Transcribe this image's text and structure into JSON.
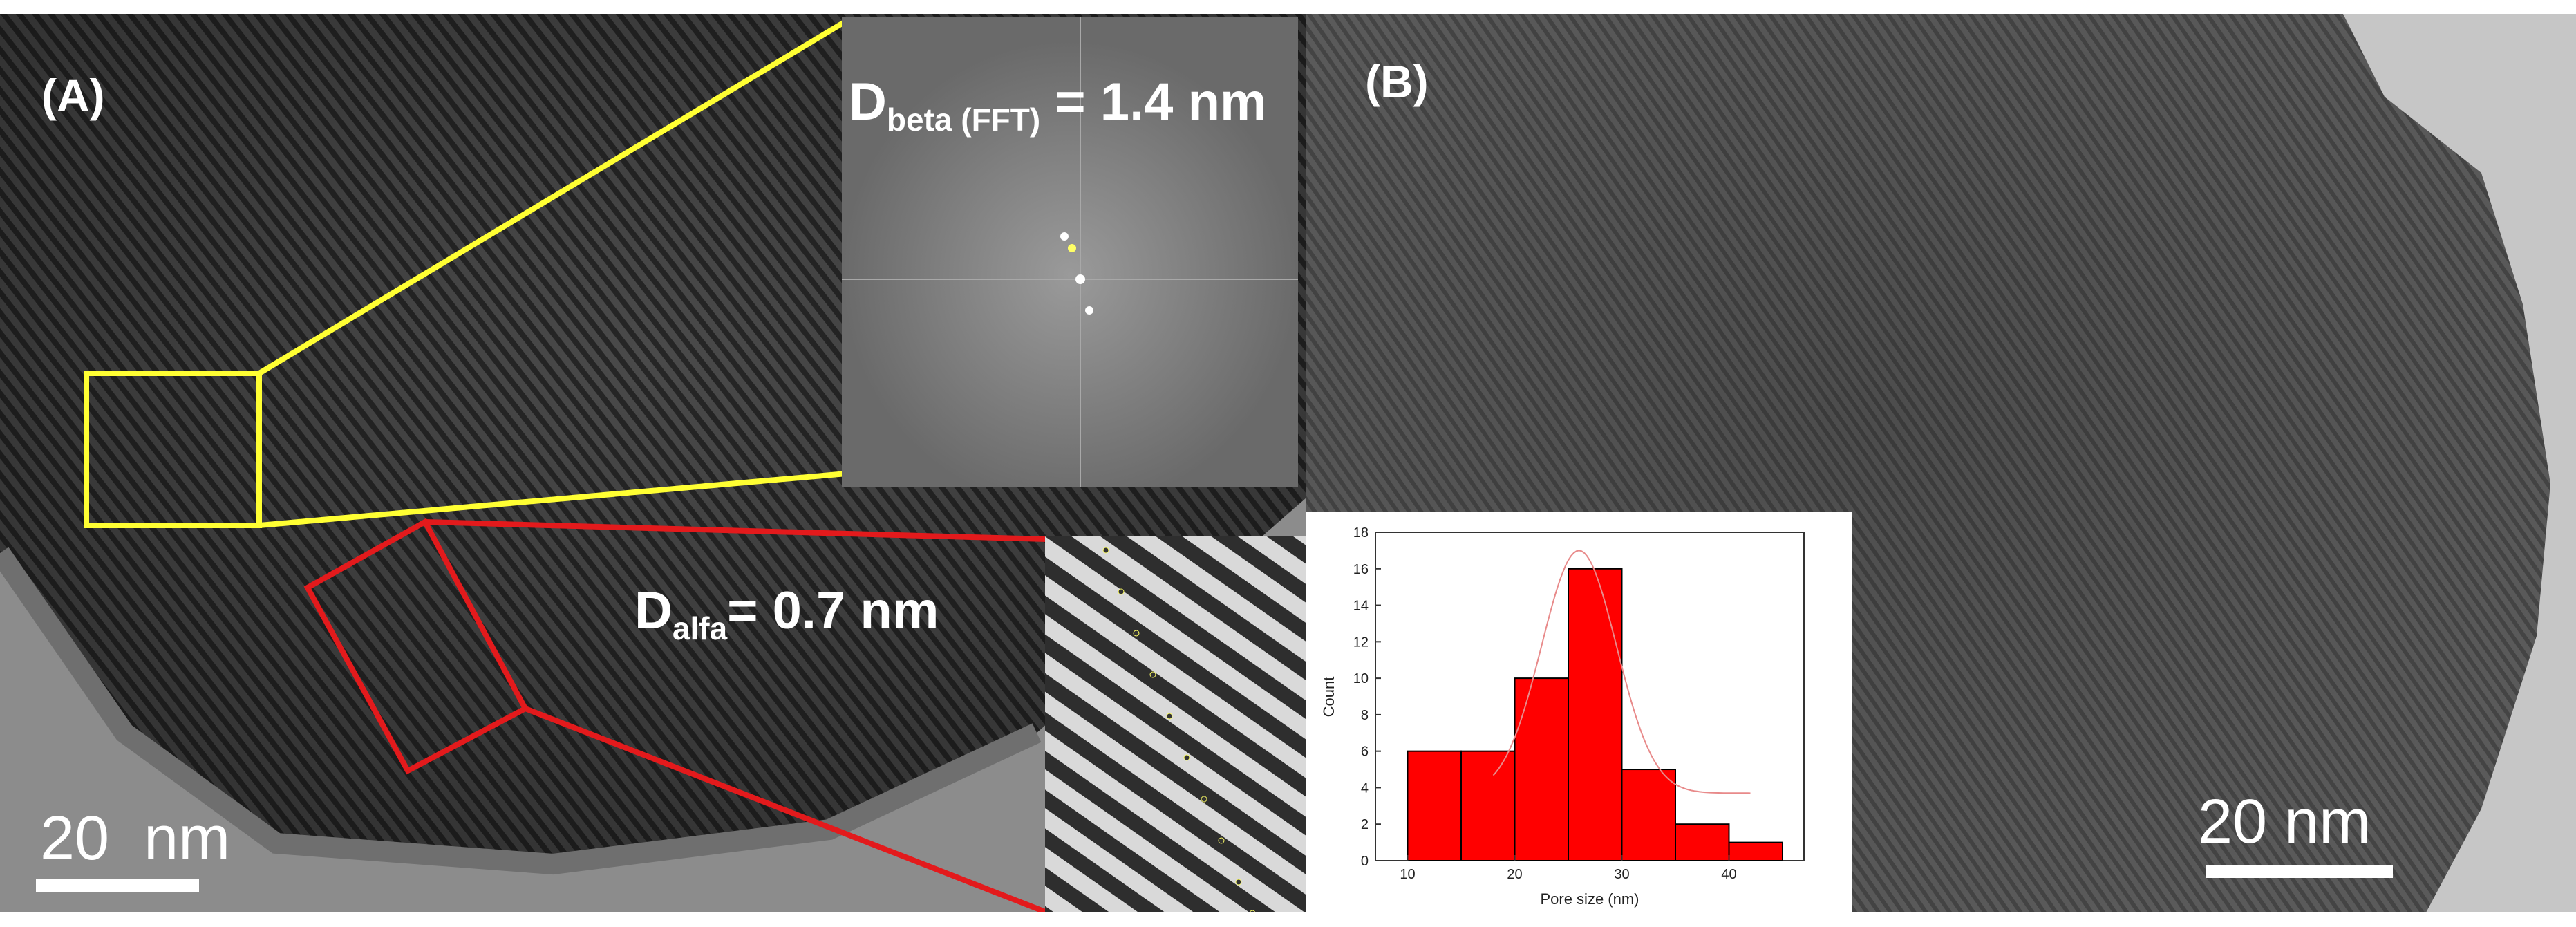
{
  "panel_a": {
    "letter": "(A)",
    "beta_label": {
      "main": "D",
      "sub": "beta (FFT)",
      "rest": " = 1.4 nm"
    },
    "alfa_label": {
      "main": "D",
      "sub": "alfa",
      "rest": "= 0.7 nm"
    },
    "scale": "20  nm",
    "yellow_box_color": "#ffff33",
    "red_box_color": "#e31a1c"
  },
  "panel_b": {
    "letter": "(B)",
    "scale": "20 nm"
  },
  "chart_data": {
    "type": "bar",
    "categories": [
      "10-15",
      "15-20",
      "20-25",
      "25-30",
      "30-35",
      "35-40",
      "40-45"
    ],
    "bin_edges": [
      10,
      15,
      20,
      25,
      30,
      35,
      40,
      45
    ],
    "values": [
      6,
      6,
      10,
      16,
      5,
      2,
      1
    ],
    "xlabel": "Pore size (nm)",
    "ylabel": "Count",
    "xlim": [
      7,
      47
    ],
    "ylim": [
      0,
      18
    ],
    "xticks": [
      10,
      20,
      30,
      40
    ],
    "yticks": [
      0,
      2,
      4,
      6,
      8,
      10,
      12,
      14,
      16,
      18
    ],
    "bar_color": "#ff0000",
    "fit_curve": {
      "type": "gaussian",
      "center": 26,
      "sigma": 3.5,
      "peak": 17,
      "baseline": 3.7,
      "color": "#e88a8a"
    }
  }
}
